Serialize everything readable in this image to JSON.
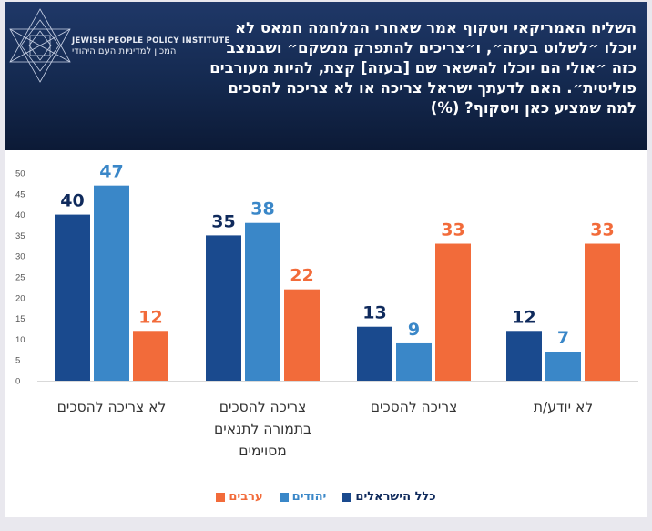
{
  "header": {
    "org_name_en": "JEWISH PEOPLE POLICY INSTITUTE",
    "org_name_he": "המכון למדיניות העם היהודי",
    "logo": "star-of-david-logo-icon",
    "title": "השליח האמריקאי ויטקוף אמר שאחרי המלחמה חמאס לא יוכלו ״לשלוט בעזה״, ו״צריכים להתפרק מנשקם״ ושבמצב כזה ״אולי הם יוכלו להישאר שם [בעזה] קצת, להיות מעורבים פוליטית״. האם לדעתך ישראל צריכה או לא צריכה להסכים למה שמציע כאן ויטקוף? (%)"
  },
  "chart_data": {
    "type": "bar",
    "title": "השליח האמריקאי ויטקוף אמר שאחרי המלחמה חמאס לא יוכלו ״לשלוט בעזה״, ו״צריכים להתפרק מנשקם״ ושבמצב כזה ״אולי הם יוכלו להישאר שם [בעזה] קצת, להיות מעורבים פוליטית״. האם לדעתך ישראל צריכה או לא צריכה להסכים למה שמציע כאן ויטקוף? (%)",
    "xlabel": "",
    "ylabel": "",
    "ylim": [
      0,
      50
    ],
    "yticks": [
      0,
      5,
      10,
      15,
      20,
      25,
      30,
      35,
      40,
      45,
      50
    ],
    "grid": false,
    "legend_position": "bottom",
    "categories": [
      [
        "לא צריכה להסכים"
      ],
      [
        "צריכה להסכים",
        "בתמורה לתנאים",
        "מסוימים"
      ],
      [
        "צריכה להסכים"
      ],
      [
        "לא יודע/ת"
      ]
    ],
    "series": [
      {
        "name": "כלל הישראלים",
        "color": "#1a4a8e",
        "label_color": "#0f2a5c",
        "values": [
          40,
          35,
          13,
          12
        ]
      },
      {
        "name": "יהודים",
        "color": "#3a87c8",
        "label_color": "#3a87c8",
        "values": [
          47,
          38,
          9,
          7
        ]
      },
      {
        "name": "ערבים",
        "color": "#f26b3a",
        "label_color": "#f26b3a",
        "values": [
          12,
          22,
          33,
          33
        ]
      }
    ]
  }
}
